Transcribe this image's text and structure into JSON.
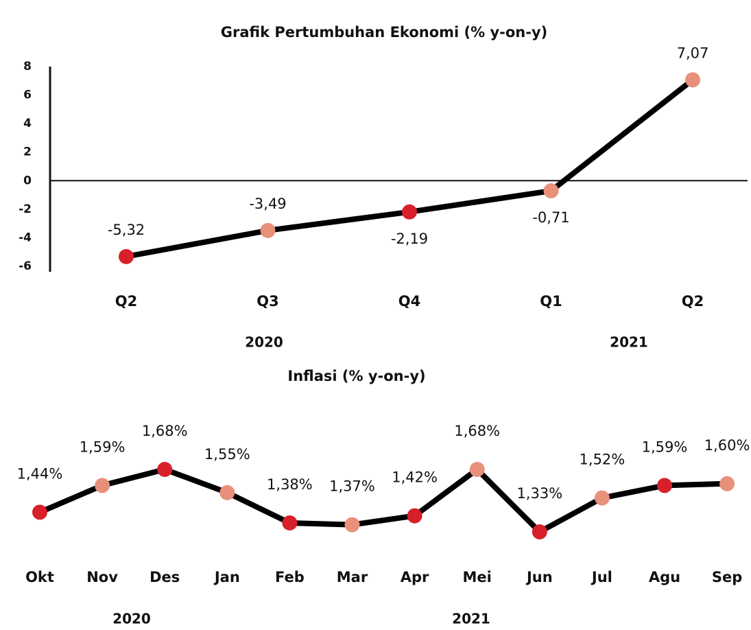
{
  "chart_data": [
    {
      "type": "line",
      "title": "Grafik Pertumbuhan Ekonomi (% y-on-y)",
      "categories": [
        "Q2",
        "Q3",
        "Q4",
        "Q1",
        "Q2"
      ],
      "groups": [
        "2020",
        "2021"
      ],
      "values": [
        -5.32,
        -3.49,
        -2.19,
        -0.71,
        7.07
      ],
      "value_labels": [
        "-5,32",
        "-3,49",
        "-2,19",
        "-0,71",
        "7,07"
      ],
      "colors": [
        "#d7202a",
        "#e8907a",
        "#d7202a",
        "#e8907a",
        "#e8907a"
      ],
      "line_color": "#000000",
      "ylim": [
        -6,
        8
      ],
      "yticks": [
        8,
        6,
        4,
        2,
        0,
        -2,
        -4,
        -6
      ]
    },
    {
      "type": "line",
      "title": "Inflasi (% y-on-y)",
      "categories": [
        "Okt",
        "Nov",
        "Des",
        "Jan",
        "Feb",
        "Mar",
        "Apr",
        "Mei",
        "Jun",
        "Jul",
        "Agu",
        "Sep"
      ],
      "groups": [
        "2020",
        "2021"
      ],
      "values": [
        1.44,
        1.59,
        1.68,
        1.55,
        1.38,
        1.37,
        1.42,
        1.68,
        1.33,
        1.52,
        1.59,
        1.6
      ],
      "value_labels": [
        "1,44%",
        "1,59%",
        "1,68%",
        "1,55%",
        "1,38%",
        "1,37%",
        "1,42%",
        "1,68%",
        "1,33%",
        "1,52%",
        "1,59%",
        "1,60%"
      ],
      "colors": [
        "#d7202a",
        "#e8907a",
        "#d7202a",
        "#e8907a",
        "#d7202a",
        "#e8907a",
        "#d7202a",
        "#e8907a",
        "#d7202a",
        "#e8907a",
        "#d7202a",
        "#e8907a"
      ],
      "line_color": "#000000"
    }
  ]
}
